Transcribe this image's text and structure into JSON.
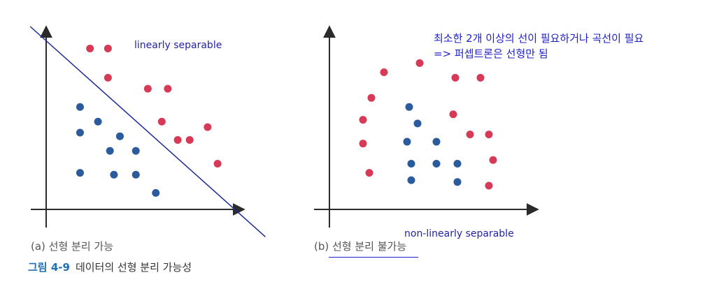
{
  "panels": [
    {
      "caption": "(a) 선형 분리 가능",
      "annotation": "linearly separable",
      "red_points": [
        [
          0.22,
          0.88
        ],
        [
          0.31,
          0.88
        ],
        [
          0.31,
          0.72
        ],
        [
          0.51,
          0.66
        ],
        [
          0.61,
          0.66
        ],
        [
          0.58,
          0.48
        ],
        [
          0.66,
          0.38
        ],
        [
          0.72,
          0.38
        ],
        [
          0.81,
          0.45
        ],
        [
          0.86,
          0.25
        ]
      ],
      "blue_points": [
        [
          0.17,
          0.56
        ],
        [
          0.17,
          0.42
        ],
        [
          0.26,
          0.48
        ],
        [
          0.32,
          0.32
        ],
        [
          0.37,
          0.4
        ],
        [
          0.45,
          0.32
        ],
        [
          0.17,
          0.2
        ],
        [
          0.34,
          0.19
        ],
        [
          0.45,
          0.19
        ],
        [
          0.55,
          0.09
        ]
      ],
      "separator": [
        [
          -0.08,
          1.0
        ],
        [
          1.1,
          -0.15
        ]
      ]
    },
    {
      "caption": "(b) 선형 분리 불가능",
      "annotation": "non-linearly separable",
      "red_points": [
        [
          0.26,
          0.75
        ],
        [
          0.43,
          0.8
        ],
        [
          0.2,
          0.61
        ],
        [
          0.16,
          0.49
        ],
        [
          0.6,
          0.72
        ],
        [
          0.72,
          0.72
        ],
        [
          0.59,
          0.52
        ],
        [
          0.67,
          0.41
        ],
        [
          0.76,
          0.41
        ],
        [
          0.16,
          0.36
        ],
        [
          0.19,
          0.2
        ],
        [
          0.78,
          0.27
        ],
        [
          0.76,
          0.13
        ]
      ],
      "blue_points": [
        [
          0.38,
          0.56
        ],
        [
          0.42,
          0.47
        ],
        [
          0.37,
          0.37
        ],
        [
          0.51,
          0.37
        ],
        [
          0.39,
          0.25
        ],
        [
          0.51,
          0.25
        ],
        [
          0.61,
          0.25
        ],
        [
          0.39,
          0.16
        ],
        [
          0.61,
          0.15
        ]
      ]
    }
  ],
  "note": [
    "최소한 2개 이상의 선이 필요하거나 곡선이 필요",
    "=> 퍼셉트론은 선형만 됨"
  ],
  "figure": {
    "number": "그림 4-9",
    "title": "데이터의 선형 분리 가능성"
  },
  "colors": {
    "red": "#d63a57",
    "blue": "#2a5b9c",
    "axis": "#2b2b2b",
    "separator": "#1c2a92",
    "annotation": "#2323a8"
  }
}
